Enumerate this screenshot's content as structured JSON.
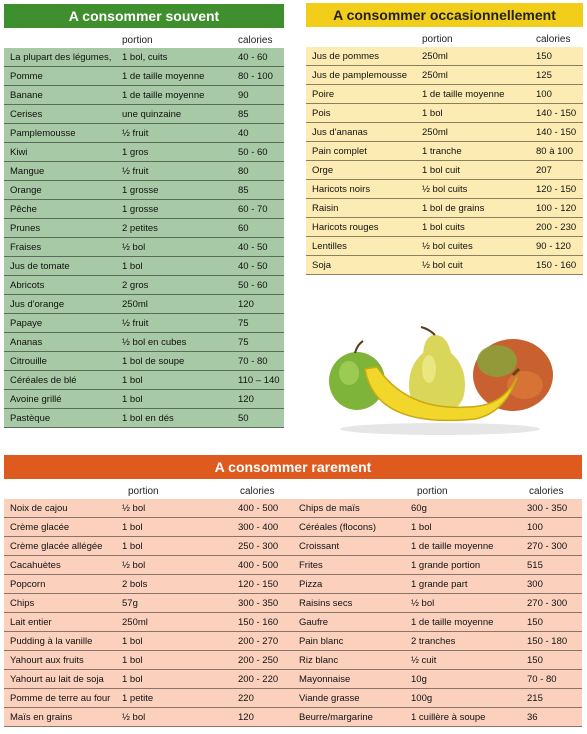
{
  "souvent": {
    "title": "A consommer souvent",
    "col_portion": "portion",
    "col_calories": "calories",
    "rows": [
      [
        "La plupart des légumes,",
        "1 bol, cuits",
        "40 - 60"
      ],
      [
        "Pomme",
        "1 de taille moyenne",
        "80 - 100"
      ],
      [
        "Banane",
        "1 de taille moyenne",
        "90"
      ],
      [
        "Cerises",
        "une quinzaine",
        "85"
      ],
      [
        "Pamplemousse",
        "½ fruit",
        "40"
      ],
      [
        "Kiwi",
        "1 gros",
        "50 - 60"
      ],
      [
        "Mangue",
        "½ fruit",
        "80"
      ],
      [
        "Orange",
        "1 grosse",
        "85"
      ],
      [
        "Pêche",
        "1 grosse",
        "60 - 70"
      ],
      [
        "Prunes",
        "2 petites",
        "60"
      ],
      [
        "Fraises",
        "½ bol",
        "40 - 50"
      ],
      [
        "Jus de tomate",
        "1 bol",
        "40 - 50"
      ],
      [
        "Abricots",
        "2 gros",
        "50 - 60"
      ],
      [
        "Jus d'orange",
        "250ml",
        "120"
      ],
      [
        "Papaye",
        "½ fruit",
        "75"
      ],
      [
        "Ananas",
        "½ bol en cubes",
        "75"
      ],
      [
        "Citrouille",
        "1 bol de soupe",
        "70 - 80"
      ],
      [
        "Céréales de blé",
        "1 bol",
        "110 – 140"
      ],
      [
        "Avoine grillé",
        "1 bol",
        "120"
      ],
      [
        "Pastèque",
        "1 bol en dés",
        "50"
      ]
    ]
  },
  "occasionnellement": {
    "title": "A consommer occasionnellement",
    "col_portion": "portion",
    "col_calories": "calories",
    "rows": [
      [
        "Jus de pommes",
        "250ml",
        "150"
      ],
      [
        "Jus de pamplemousse",
        "250ml",
        "125"
      ],
      [
        "Poire",
        "1 de taille moyenne",
        "100"
      ],
      [
        "Pois",
        "1 bol",
        "140 - 150"
      ],
      [
        "Jus d'ananas",
        "250ml",
        "140 - 150"
      ],
      [
        "Pain complet",
        "1 tranche",
        "80 à 100"
      ],
      [
        "Orge",
        "1 bol cuit",
        "207"
      ],
      [
        "Haricots noirs",
        "½ bol cuits",
        "120 - 150"
      ],
      [
        "Raisin",
        "1 bol de grains",
        "100 - 120"
      ],
      [
        "Haricots rouges",
        "1 bol cuits",
        "200 - 230"
      ],
      [
        "Lentilles",
        "½ bol cuites",
        "90 - 120"
      ],
      [
        "Soja",
        "½ bol cuit",
        "150 - 160"
      ]
    ]
  },
  "rarement": {
    "title": "A consommer rarement",
    "col_portion": "portion",
    "col_calories": "calories",
    "left_rows": [
      [
        "Noix de cajou",
        "½ bol",
        "400 - 500"
      ],
      [
        "Crème glacée",
        "1 bol",
        "300 - 400"
      ],
      [
        "Crème glacée allégée",
        "1 bol",
        "250 - 300"
      ],
      [
        "Cacahuètes",
        "½ bol",
        "400 - 500"
      ],
      [
        "Popcorn",
        "2 bols",
        "120 - 150"
      ],
      [
        "Chips",
        "57g",
        "300 - 350"
      ],
      [
        "Lait entier",
        "250ml",
        "150 - 160"
      ],
      [
        "Pudding à la vanille",
        "1 bol",
        "200 - 270"
      ],
      [
        "Yahourt aux fruits",
        "1 bol",
        "200 - 250"
      ],
      [
        "Yahourt au lait de soja",
        "1 bol",
        "200 - 220"
      ],
      [
        "Pomme de terre au four",
        "1 petite",
        "220"
      ],
      [
        "Maïs en grains",
        "½ bol",
        "120"
      ]
    ],
    "right_rows": [
      [
        "Chips de maïs",
        "60g",
        "300 - 350"
      ],
      [
        "Céréales (flocons)",
        "1 bol",
        "100"
      ],
      [
        "Croissant",
        "1 de taille moyenne",
        "270 - 300"
      ],
      [
        "Frites",
        "1 grande portion",
        "515"
      ],
      [
        "Pizza",
        "1 grande part",
        "300"
      ],
      [
        "Raisins secs",
        "½ bol",
        "270 - 300"
      ],
      [
        "Gaufre",
        "1 de taille moyenne",
        "150"
      ],
      [
        "Pain blanc",
        "2 tranches",
        "150 - 180"
      ],
      [
        "Riz blanc",
        "½ cuit",
        "150"
      ],
      [
        "Mayonnaise",
        "10g",
        "70 - 80"
      ],
      [
        "Viande grasse",
        "100g",
        "215"
      ],
      [
        "Beurre/margarine",
        "1 cuillère à soupe",
        "36"
      ]
    ]
  },
  "colors": {
    "green_header": "#3f8f2f",
    "green_body": "#a7c9a5",
    "yellow_header": "#f2cd1a",
    "yellow_body": "#fcecb3",
    "orange_header": "#df5a1f",
    "orange_body": "#fbd1be"
  }
}
